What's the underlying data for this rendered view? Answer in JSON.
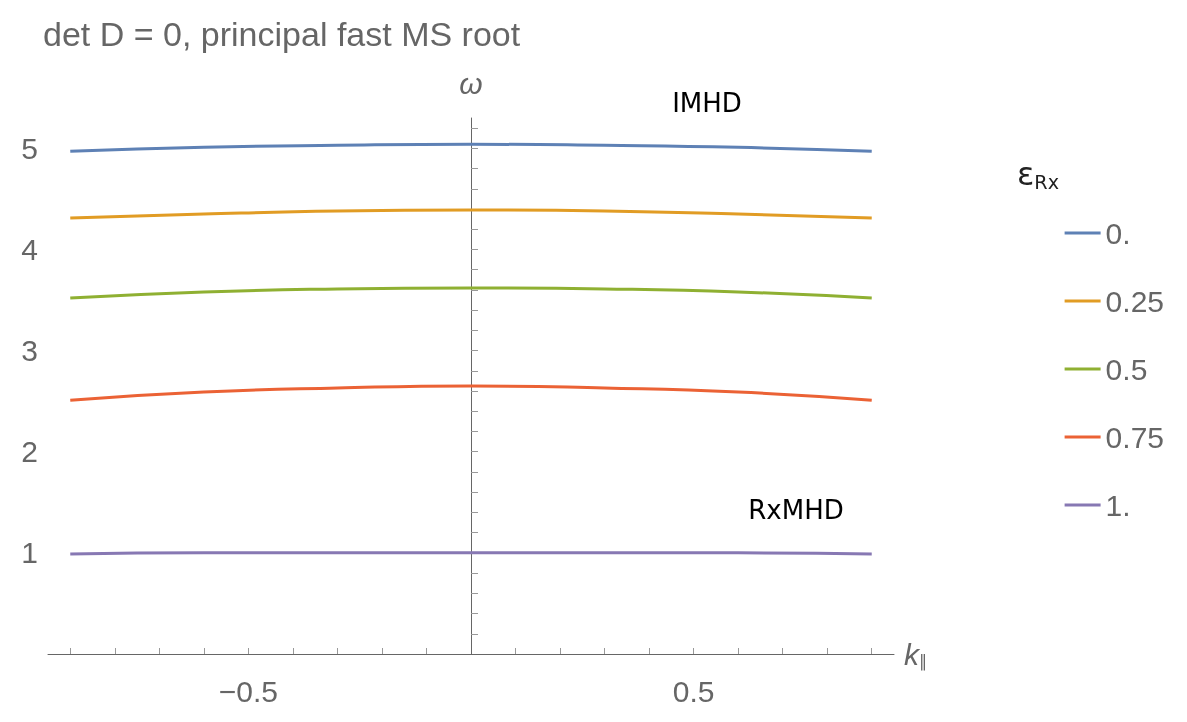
{
  "chart_data": {
    "type": "line",
    "title": "det D = 0, principal fast MS root",
    "xlabel": "k$_{∥}$",
    "ylabel": "ω",
    "legend_title": "ε$_{Rx}$",
    "legend": "right",
    "grid": false,
    "marker": "none",
    "x": [
      -0.9,
      -0.6,
      -0.3,
      0,
      0.3,
      0.6,
      0.9
    ],
    "xlim": [
      -0.95,
      0.95
    ],
    "ylim": [
      0,
      5.3
    ],
    "xticks": [
      {
        "value": -0.9,
        "label": null
      },
      {
        "value": -0.8,
        "label": null
      },
      {
        "value": -0.7,
        "label": null
      },
      {
        "value": -0.6,
        "label": null
      },
      -0.5,
      {
        "value": -0.4,
        "label": null
      },
      {
        "value": -0.3,
        "label": null
      },
      {
        "value": -0.2,
        "label": null
      },
      {
        "value": -0.1,
        "label": null
      },
      {
        "value": 0.1,
        "label": null
      },
      {
        "value": 0.2,
        "label": null
      },
      {
        "value": 0.3,
        "label": null
      },
      {
        "value": 0.4,
        "label": null
      },
      0.5,
      {
        "value": 0.6,
        "label": null
      },
      {
        "value": 0.7,
        "label": null
      },
      {
        "value": 0.8,
        "label": null
      },
      {
        "value": 0.9,
        "label": null
      }
    ],
    "yticks": [
      {
        "value": 0.2,
        "label": null
      },
      {
        "value": 0.4,
        "label": null
      },
      {
        "value": 0.6,
        "label": null
      },
      {
        "value": 0.8,
        "label": null
      },
      1,
      {
        "value": 1.2,
        "label": null
      },
      {
        "value": 1.4,
        "label": null
      },
      {
        "value": 1.6,
        "label": null
      },
      {
        "value": 1.8,
        "label": null
      },
      2,
      {
        "value": 2.2,
        "label": null
      },
      {
        "value": 2.4,
        "label": null
      },
      {
        "value": 2.6,
        "label": null
      },
      {
        "value": 2.8,
        "label": null
      },
      3,
      {
        "value": 3.2,
        "label": null
      },
      {
        "value": 3.4,
        "label": null
      },
      {
        "value": 3.6,
        "label": null
      },
      {
        "value": 3.8,
        "label": null
      },
      4,
      {
        "value": 4.2,
        "label": null
      },
      {
        "value": 4.4,
        "label": null
      },
      {
        "value": 4.6,
        "label": null
      },
      {
        "value": 4.8,
        "label": null
      },
      5,
      {
        "value": 5.2,
        "label": null
      }
    ],
    "series": [
      {
        "name": "0.",
        "color": "#5e81b5",
        "values": [
          4.97,
          5.01,
          5.03,
          5.04,
          5.03,
          5.01,
          4.97
        ]
      },
      {
        "name": "0.25",
        "color": "#e19c24",
        "values": [
          4.31,
          4.35,
          4.38,
          4.39,
          4.38,
          4.35,
          4.31
        ]
      },
      {
        "name": "0.5",
        "color": "#8fb032",
        "values": [
          3.52,
          3.58,
          3.61,
          3.62,
          3.61,
          3.58,
          3.52
        ]
      },
      {
        "name": "0.75",
        "color": "#eb6235",
        "values": [
          2.51,
          2.59,
          2.63,
          2.65,
          2.63,
          2.59,
          2.51
        ]
      },
      {
        "name": "1.",
        "color": "#8778b3",
        "values": [
          0.99,
          1.0,
          1.0,
          1.0,
          1.0,
          1.0,
          0.99
        ]
      }
    ],
    "annotations": [
      "IMHD",
      "RxMHD"
    ]
  }
}
